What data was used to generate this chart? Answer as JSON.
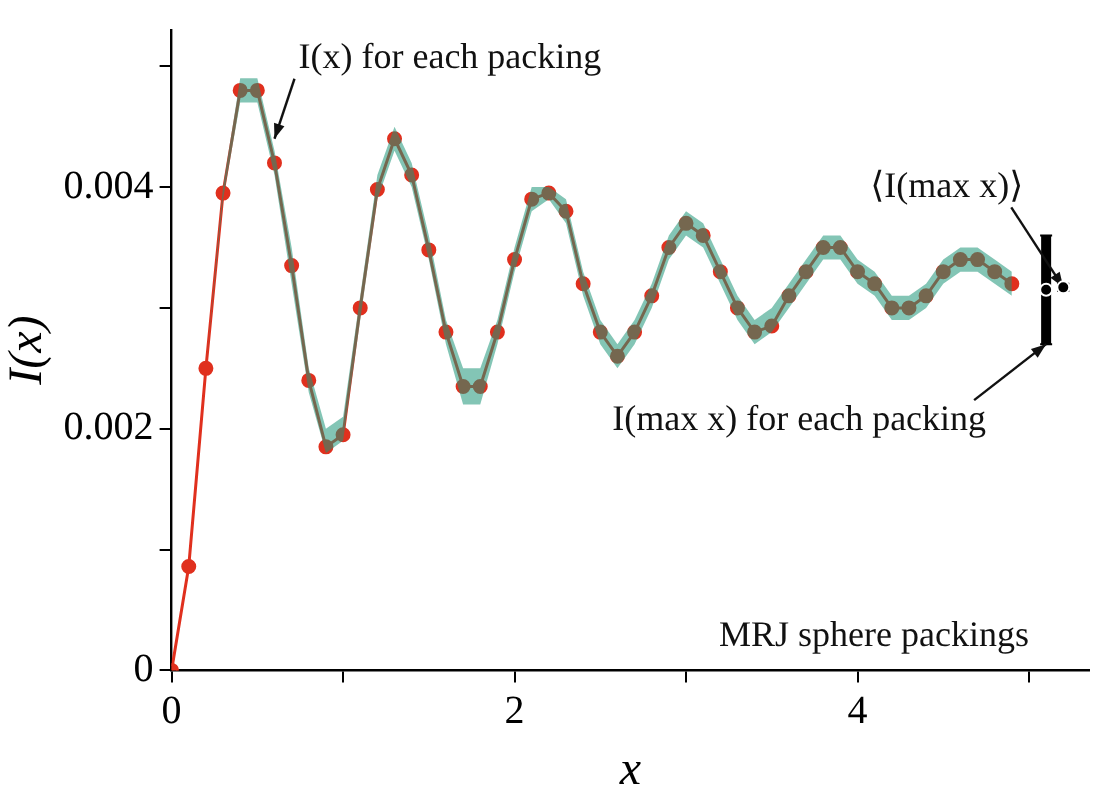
{
  "chart_data": {
    "type": "line",
    "xlabel": "x",
    "ylabel": "I(x)",
    "xlim": [
      0,
      5.35
    ],
    "ylim": [
      0,
      0.0053
    ],
    "xticks": [
      0,
      {
        "value": 1,
        "label": null
      },
      2,
      {
        "value": 3,
        "label": null
      },
      4,
      {
        "value": 5,
        "label": null
      }
    ],
    "yticks": [
      0,
      {
        "value": 0.001,
        "label": null
      },
      0.002,
      {
        "value": 0.003,
        "label": null
      },
      0.004,
      {
        "value": 0.005,
        "label": null
      }
    ],
    "grid": false,
    "legend": false,
    "marker": "circle",
    "line_style": "solid",
    "series": [
      {
        "color": "#e0301e",
        "x": [
          0,
          0.1,
          0.2,
          0.3,
          0.4,
          0.5,
          0.6,
          0.7,
          0.8,
          0.9,
          1.0,
          1.1,
          1.2,
          1.3,
          1.4,
          1.5,
          1.6,
          1.7,
          1.8,
          1.9,
          2.0,
          2.1,
          2.2,
          2.3,
          2.4,
          2.5,
          2.6,
          2.7,
          2.8,
          2.9,
          3.0,
          3.1,
          3.2,
          3.3,
          3.4,
          3.5,
          3.6,
          3.7,
          3.8,
          3.9,
          4.0,
          4.1,
          4.2,
          4.3,
          4.4,
          4.5,
          4.6,
          4.7,
          4.8,
          4.9
        ],
        "values": [
          0,
          0.00086,
          0.0025,
          0.00395,
          0.0048,
          0.0048,
          0.0042,
          0.00335,
          0.0024,
          0.00185,
          0.00195,
          0.003,
          0.00398,
          0.0044,
          0.0041,
          0.00348,
          0.0028,
          0.00235,
          0.00235,
          0.0028,
          0.0034,
          0.0039,
          0.00395,
          0.0038,
          0.0032,
          0.0028,
          0.0026,
          0.0028,
          0.0031,
          0.0035,
          0.0037,
          0.0036,
          0.0033,
          0.003,
          0.0028,
          0.00285,
          0.0031,
          0.0033,
          0.0035,
          0.0035,
          0.0033,
          0.0032,
          0.003,
          0.003,
          0.0031,
          0.0033,
          0.0034,
          0.0034,
          0.0033,
          0.0032
        ],
        "lower": [
          0,
          0.00086,
          0.0025,
          0.0039,
          0.0047,
          0.0047,
          0.0041,
          0.0032,
          0.0023,
          0.0018,
          0.0019,
          0.0029,
          0.0039,
          0.0043,
          0.004,
          0.0034,
          0.0027,
          0.0022,
          0.0022,
          0.0027,
          0.0033,
          0.0038,
          0.0039,
          0.0037,
          0.0031,
          0.0027,
          0.0025,
          0.0027,
          0.003,
          0.0034,
          0.0036,
          0.0035,
          0.0032,
          0.0029,
          0.0027,
          0.0028,
          0.003,
          0.0032,
          0.0034,
          0.0034,
          0.0032,
          0.0031,
          0.0029,
          0.0029,
          0.003,
          0.0032,
          0.0033,
          0.0033,
          0.0032,
          0.0031
        ],
        "upper": [
          0,
          0.00086,
          0.0025,
          0.004,
          0.0049,
          0.0049,
          0.0043,
          0.0035,
          0.0025,
          0.002,
          0.0021,
          0.0031,
          0.0041,
          0.0045,
          0.0042,
          0.0036,
          0.0029,
          0.0025,
          0.0025,
          0.0029,
          0.0035,
          0.004,
          0.004,
          0.0039,
          0.0033,
          0.0029,
          0.0027,
          0.0029,
          0.0032,
          0.0036,
          0.0038,
          0.0037,
          0.0034,
          0.0031,
          0.0029,
          0.003,
          0.0032,
          0.0034,
          0.0036,
          0.0036,
          0.0034,
          0.0033,
          0.0031,
          0.0031,
          0.0032,
          0.0034,
          0.0035,
          0.0035,
          0.0034,
          0.0033
        ]
      },
      {
        "type": "scatter",
        "color": "#000000",
        "marker": "circle",
        "x": [
          5.1
        ],
        "values": [
          0.00315
        ],
        "errors": [
          [
            0.0027,
            0.0036
          ]
        ]
      },
      {
        "type": "scatter",
        "color": "#000000",
        "marker": "circle",
        "x": [
          5.2
        ],
        "values": [
          0.00317
        ],
        "errors": [
          3e-05
        ]
      }
    ],
    "annotations": [
      {
        "text": "I(x) for each packing",
        "x": 0.6,
        "y": 0.0044
      },
      {
        "text": "I(max x) for each packing",
        "x": 5.1,
        "y": 0.0027
      },
      {
        "text": "⟨I(max x)⟩",
        "x": 5.2,
        "y": 0.00317
      },
      "MRJ sphere packings"
    ]
  }
}
